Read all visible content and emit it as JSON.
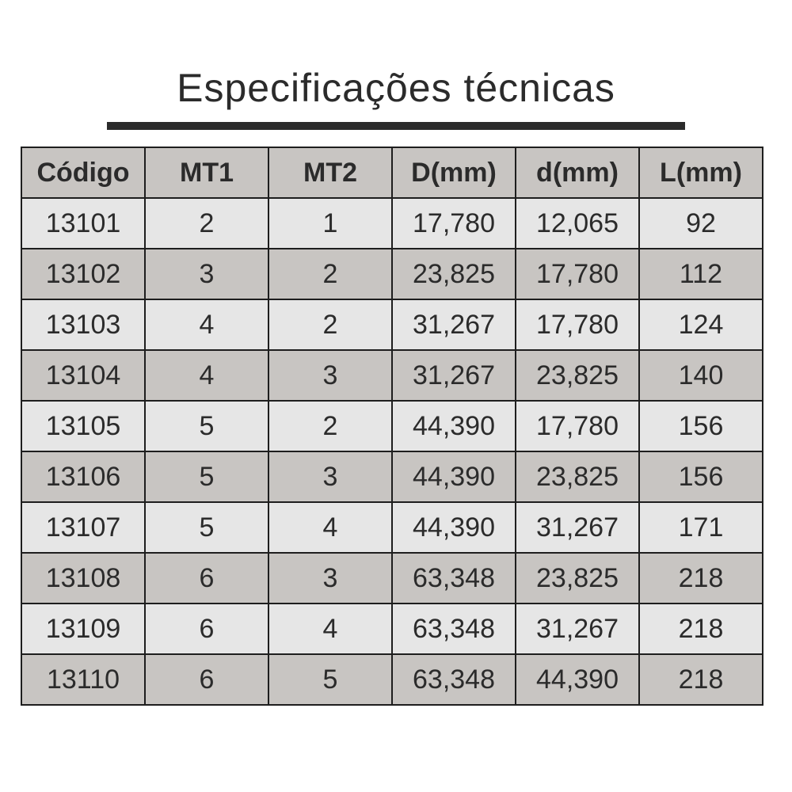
{
  "header": {
    "title": "Especificações técnicas"
  },
  "table": {
    "columns": [
      "Código",
      "MT1",
      "MT2",
      "D(mm)",
      "d(mm)",
      "L(mm)"
    ],
    "rows": [
      [
        "13101",
        "2",
        "1",
        "17,780",
        "12,065",
        "92"
      ],
      [
        "13102",
        "3",
        "2",
        "23,825",
        "17,780",
        "112"
      ],
      [
        "13103",
        "4",
        "2",
        "31,267",
        "17,780",
        "124"
      ],
      [
        "13104",
        "4",
        "3",
        "31,267",
        "23,825",
        "140"
      ],
      [
        "13105",
        "5",
        "2",
        "44,390",
        "17,780",
        "156"
      ],
      [
        "13106",
        "5",
        "3",
        "44,390",
        "23,825",
        "156"
      ],
      [
        "13107",
        "5",
        "4",
        "44,390",
        "31,267",
        "171"
      ],
      [
        "13108",
        "6",
        "3",
        "63,348",
        "23,825",
        "218"
      ],
      [
        "13109",
        "6",
        "4",
        "63,348",
        "31,267",
        "218"
      ],
      [
        "13110",
        "6",
        "5",
        "63,348",
        "44,390",
        "218"
      ]
    ]
  }
}
